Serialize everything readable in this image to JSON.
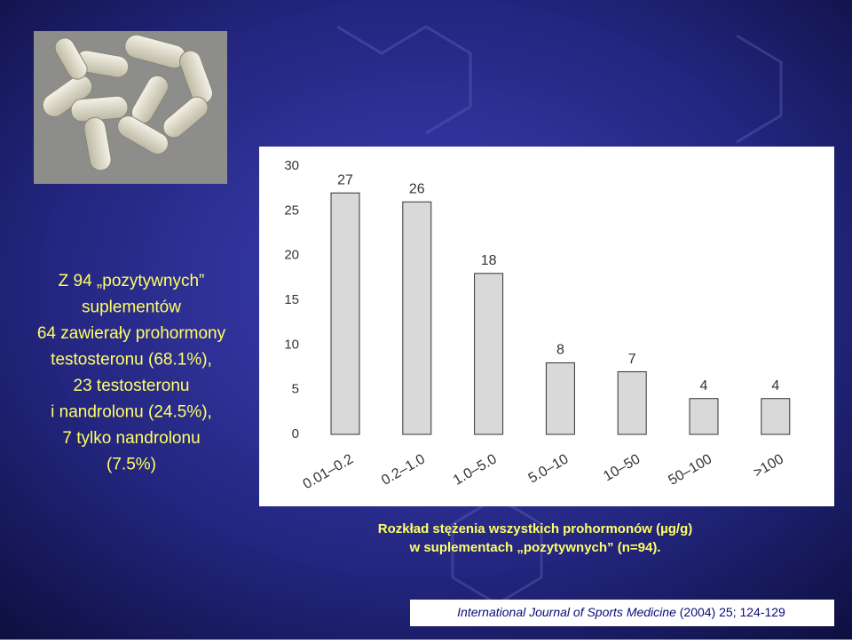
{
  "slide": {
    "text_lines": [
      "Z 94 „pozytywnych”",
      "suplementów",
      "64 zawierały prohormony",
      "testosteronu (68.1%),",
      "23 testosteronu",
      "i nandrolonu (24.5%),",
      "7 tylko nandrolonu",
      "(7.5%)"
    ],
    "caption": [
      "Rozkład stężenia wszystkich prohormonów (µg/g)",
      "w suplementach „pozytywnych” (n=94)."
    ],
    "citation": {
      "journal": "International Journal of Sports Medicine",
      "details": "(2004) 25; 124-129"
    }
  },
  "chart_data": {
    "type": "bar",
    "categories": [
      "0.01–0.2",
      "0.2–1.0",
      "1.0–5.0",
      "5.0–10",
      "10–50",
      "50–100",
      ">100"
    ],
    "values": [
      27,
      26,
      18,
      8,
      7,
      4,
      4
    ],
    "color": "#d9d9d9",
    "ylim": [
      0,
      30
    ],
    "yticks": [
      0,
      5,
      10,
      15,
      20,
      25,
      30
    ],
    "grid": false
  }
}
